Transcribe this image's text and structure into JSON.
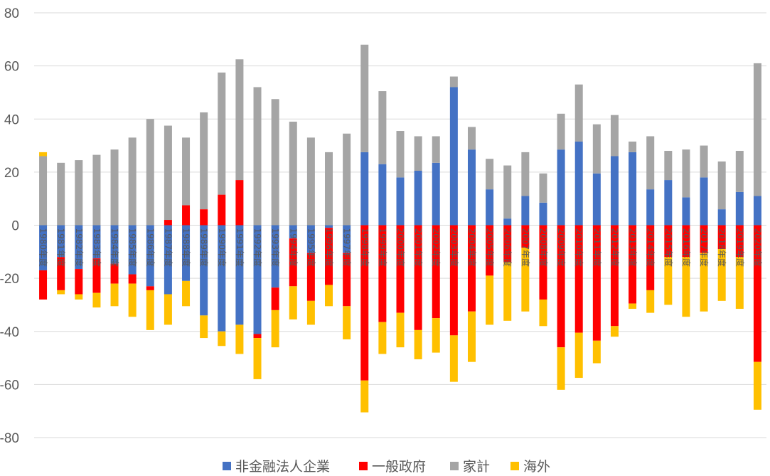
{
  "chart_data": {
    "type": "bar",
    "stacked": true,
    "title": "",
    "xlabel": "",
    "ylabel": "",
    "ylim": [
      -80,
      80
    ],
    "yticks": [
      80,
      60,
      40,
      20,
      0,
      -20,
      -40,
      -60,
      -80
    ],
    "ytick_labels": [
      "80",
      "60",
      "40",
      "20",
      "0",
      "-20",
      "-40",
      "-60",
      "-80"
    ],
    "grid": true,
    "legend_position": "bottom",
    "categories": [
      "1980年度",
      "1981年度",
      "1982年度",
      "1983年度",
      "1984年度",
      "1985年度",
      "1986年度",
      "1987年度",
      "1988年度",
      "1989年度",
      "1990年度",
      "1991年度",
      "1992年度",
      "1993年度",
      "1994年度",
      "1995年度",
      "1996年度",
      "1997年度",
      "1998年度",
      "1999年度",
      "2000年度",
      "2001年度",
      "2002年度",
      "2003年度",
      "2004年度",
      "2005年度",
      "2006年度",
      "2007年度",
      "2008年度",
      "2009年度",
      "2010年度",
      "2011年度",
      "2012年度",
      "2013年度",
      "2014年度",
      "2015年度",
      "2016年度",
      "2017年度",
      "2018年度",
      "2019年度",
      "2020年度"
    ],
    "series": [
      {
        "name": "非金融法人企業",
        "color": "#4472C4",
        "values": [
          -17,
          -12,
          -16.5,
          -12.5,
          -14.5,
          -18.5,
          -23,
          -26,
          -21,
          -34,
          -40,
          -37.5,
          -41,
          -23.5,
          -5,
          -10.5,
          -1,
          -10.5,
          27.5,
          23,
          18,
          20.5,
          23.5,
          52,
          28.5,
          13.5,
          2.5,
          11,
          8.5,
          28.5,
          31.5,
          19.5,
          26,
          27.5,
          13.5,
          17,
          10.5,
          18,
          6,
          12.5,
          11
        ]
      },
      {
        "name": "一般政府",
        "color": "#FF0000",
        "values": [
          -11,
          -12.5,
          -9.5,
          -13,
          -7.5,
          -3.5,
          -1.5,
          2,
          7.5,
          6,
          11.5,
          17,
          -1.5,
          -8.5,
          -18,
          -18,
          -21.5,
          -20,
          -58.5,
          -36.5,
          -33,
          -39.5,
          -35,
          -41.5,
          -32.5,
          -19,
          -14,
          -8.5,
          -28,
          -46,
          -40.5,
          -43.5,
          -38,
          -29.5,
          -24.5,
          -12,
          -12,
          -10.5,
          -9,
          -12,
          -51.5
        ]
      },
      {
        "name": "家計",
        "color": "#A5A5A5",
        "values": [
          26,
          23.5,
          24.5,
          26.5,
          28.5,
          33,
          40,
          35.5,
          25.5,
          36.5,
          46,
          45.5,
          52,
          47.5,
          39,
          33,
          27.5,
          34.5,
          40.5,
          27.5,
          17.5,
          13,
          10,
          4,
          8.5,
          11.5,
          20,
          16.5,
          11,
          13.5,
          21.5,
          18.5,
          15.5,
          4,
          20,
          11,
          18,
          12,
          18,
          15.5,
          50
        ]
      },
      {
        "name": "海外",
        "color": "#FFC000",
        "values": [
          1.5,
          -1.5,
          -2,
          -5.5,
          -8.5,
          -12.5,
          -15,
          -11.5,
          -9.5,
          -8.5,
          -5.5,
          -11,
          -15.5,
          -14,
          -12.5,
          -9,
          -8,
          -12.5,
          -12,
          -12,
          -13,
          -11,
          -13,
          -17.5,
          -19,
          -18.5,
          -22,
          -24,
          -10,
          -16,
          -17,
          -8.5,
          -4,
          -2,
          -8.5,
          -18,
          -22.5,
          -22,
          -19.5,
          -19.5,
          -18
        ]
      }
    ]
  }
}
